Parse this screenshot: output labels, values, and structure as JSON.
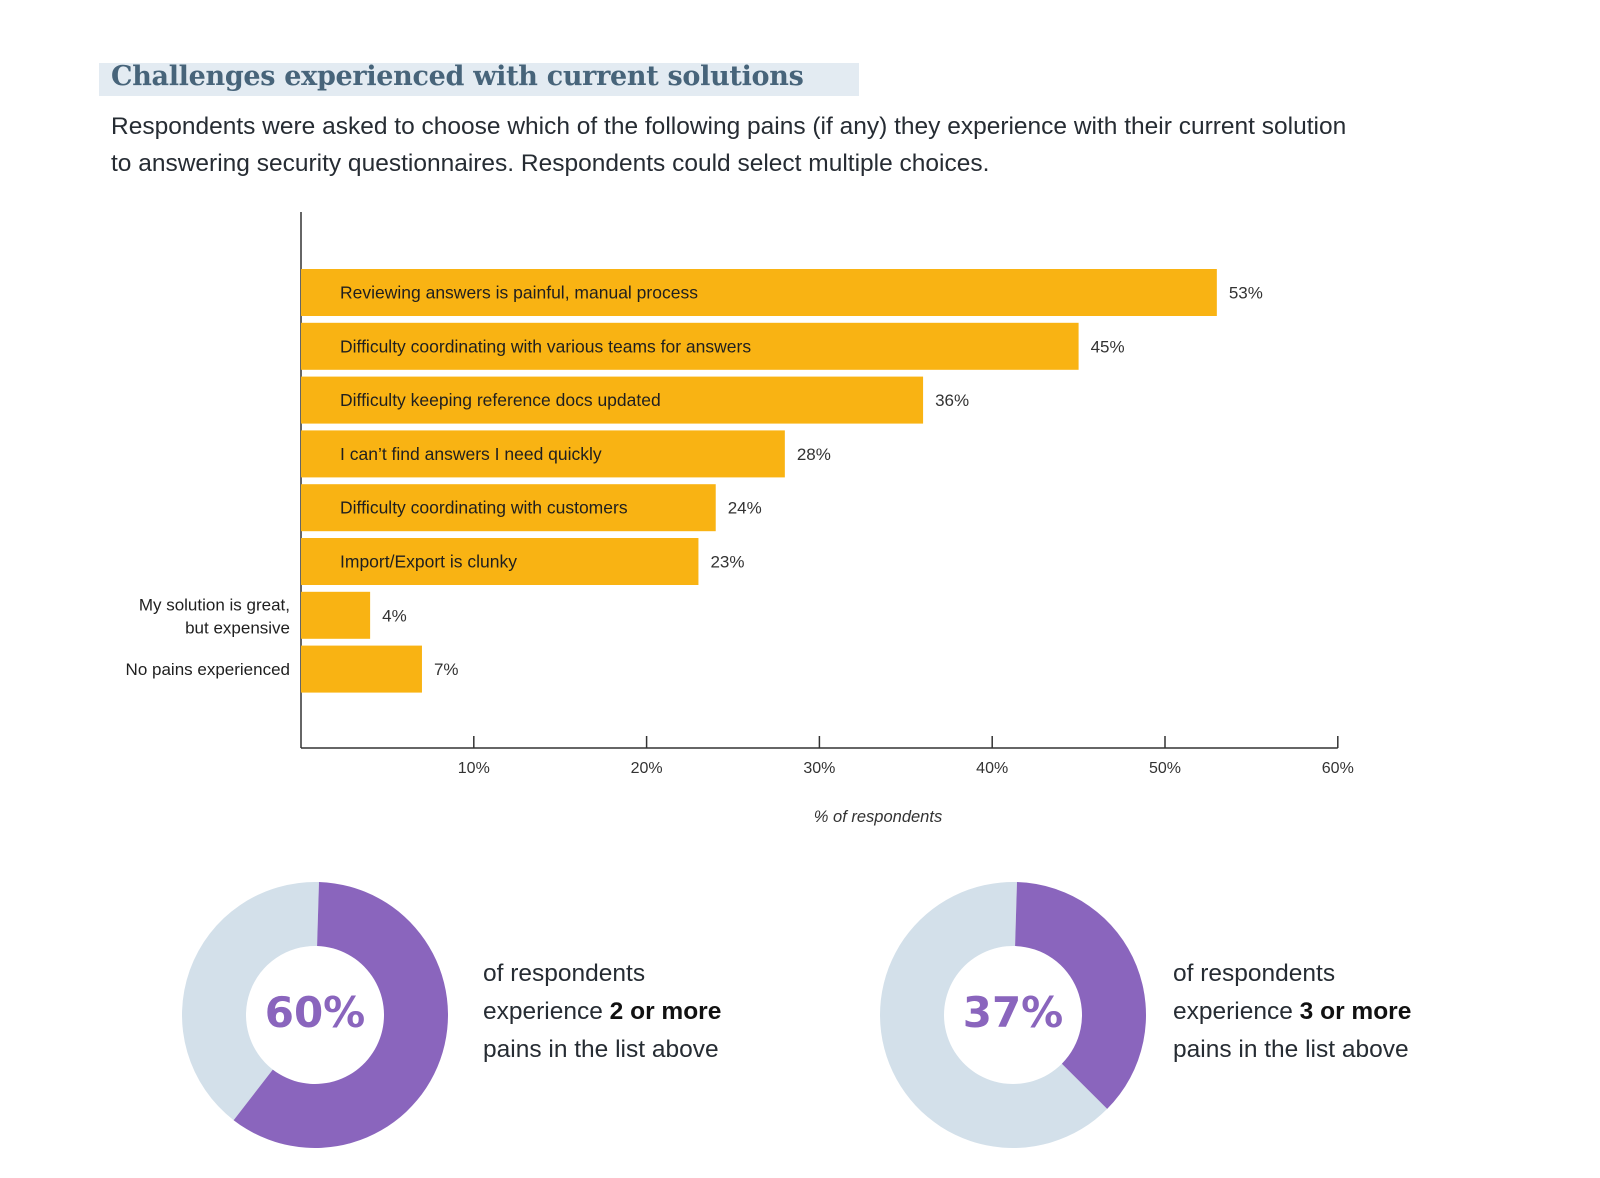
{
  "header": {
    "title": "Challenges experienced with current solutions",
    "description": "Respondents were asked to choose which of the following pains (if any) they experience with their current solution to answering security questionnaires. Respondents could select multiple choices."
  },
  "chart_data": [
    {
      "type": "bar",
      "orientation": "horizontal",
      "categories": [
        "Reviewing answers is painful, manual process",
        "Difficulty coordinating with various teams for answers",
        "Difficulty keeping reference docs updated",
        "I can’t find answers I need quickly",
        "Difficulty coordinating with customers",
        "Import/Export is clunky",
        "My solution is great, but expensive",
        "No pains experienced"
      ],
      "values": [
        53,
        45,
        36,
        28,
        24,
        23,
        4,
        7
      ],
      "value_labels": [
        "53%",
        "45%",
        "36%",
        "28%",
        "24%",
        "23%",
        "4%",
        "7%"
      ],
      "label_inside": [
        true,
        true,
        true,
        true,
        true,
        true,
        false,
        false
      ],
      "xlabel": "% of respondents",
      "xlim": [
        0,
        60
      ],
      "xticks": [
        10,
        20,
        30,
        40,
        50,
        60
      ],
      "xtick_labels": [
        "10%",
        "20%",
        "30%",
        "40%",
        "50%",
        "60%"
      ],
      "bar_color": "#f9b313",
      "grid": false
    },
    {
      "type": "pie",
      "style": "donut",
      "value": 60,
      "label": "60%",
      "colors": [
        "#8a65bd",
        "#d3e0ea"
      ]
    },
    {
      "type": "pie",
      "style": "donut",
      "value": 37,
      "label": "37%",
      "colors": [
        "#8a65bd",
        "#d3e0ea"
      ]
    }
  ],
  "stats": [
    {
      "line1": "of respondents",
      "line2_pre": "experience ",
      "line2_bold": "2 or more",
      "line3": "pains in the list above"
    },
    {
      "line1": "of respondents",
      "line2_pre": "experience ",
      "line2_bold": "3 or more",
      "line3": "pains in the list above"
    }
  ]
}
